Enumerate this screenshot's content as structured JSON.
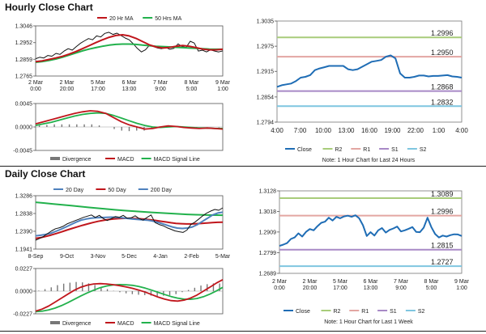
{
  "sections": {
    "hourly_title": "Hourly Close Chart",
    "daily_title": "Daily Close Chart"
  },
  "colors": {
    "price": "#111111",
    "ma_short": "#c0161c",
    "ma_long": "#22b14c",
    "ma_mid": "#4f81bd",
    "macd": "#c0161c",
    "signal": "#22b14c",
    "divergence": "#777777",
    "close": "#1f6db5",
    "r2": "#a8cc7a",
    "r1": "#e3a6a2",
    "s1": "#a889c6",
    "s2": "#7fc6e0",
    "frame": "#4a7ebb"
  },
  "chart_data": [
    {
      "id": "hourly_price",
      "type": "line",
      "legend": [
        "20 Hr MA",
        "50 Hrs MA"
      ],
      "x_labels": [
        "2 Mar\n0:00",
        "2 Mar\n20:00",
        "5 Mar\n17:00",
        "6 Mar\n13:00",
        "7 Mar\n9:00",
        "8 Mar\n5:00",
        "9 Mar\n1:00"
      ],
      "y_ticks": [
        1.2765,
        1.2859,
        1.2952,
        1.3046
      ],
      "ylim": [
        1.2765,
        1.3046
      ],
      "series": [
        {
          "name": "Close",
          "values": [
            1.2862,
            1.287,
            1.2866,
            1.288,
            1.2876,
            1.2892,
            1.2886,
            1.2905,
            1.2918,
            1.291,
            1.293,
            1.2948,
            1.2962,
            1.2975,
            1.2968,
            1.299,
            1.2984,
            1.3004,
            1.301,
            1.2998,
            1.3005,
            1.2992,
            1.2978,
            1.2968,
            1.2946,
            1.292,
            1.29,
            1.2912,
            1.2938,
            1.293,
            1.2922,
            1.2918,
            1.2925,
            1.2915,
            1.292,
            1.2945,
            1.293,
            1.2925,
            1.296,
            1.295,
            1.2905,
            1.291,
            1.29,
            1.2912,
            1.2905,
            1.29,
            1.2906
          ]
        },
        {
          "name": "20 Hr MA",
          "values": [
            1.2845,
            1.285,
            1.2858,
            1.2866,
            1.2875,
            1.2888,
            1.2902,
            1.2918,
            1.2935,
            1.2952,
            1.2968,
            1.2982,
            1.2992,
            1.2996,
            1.299,
            1.2976,
            1.2958,
            1.294,
            1.2928,
            1.2922,
            1.2925,
            1.2932,
            1.2936,
            1.2932,
            1.2924,
            1.2916,
            1.2912,
            1.2912,
            1.2915
          ]
        },
        {
          "name": "50 Hrs MA",
          "values": [
            1.2842,
            1.2846,
            1.2852,
            1.286,
            1.287,
            1.2882,
            1.2894,
            1.2906,
            1.2916,
            1.2924,
            1.2932,
            1.2938,
            1.2942,
            1.2944,
            1.2944,
            1.2942,
            1.2938,
            1.2935,
            1.2932,
            1.293,
            1.2928,
            1.2926,
            1.2924,
            1.2922,
            1.292,
            1.2918,
            1.2916,
            1.2915,
            1.2915
          ]
        }
      ]
    },
    {
      "id": "hourly_macd",
      "type": "line",
      "legend": [
        "Divergence",
        "MACD",
        "MACD Signal Line"
      ],
      "y_ticks": [
        0.0045,
        0.0,
        -0.0045
      ],
      "ylim": [
        -0.0045,
        0.0045
      ],
      "series": [
        {
          "name": "MACD",
          "values": [
            0.0006,
            0.001,
            0.0014,
            0.0018,
            0.0022,
            0.0026,
            0.0029,
            0.0031,
            0.003,
            0.0026,
            0.0018,
            0.001,
            0.0004,
            0.0,
            -0.0004,
            -0.0003,
            0.0,
            0.0002,
            0.0001,
            -0.0001,
            -0.0002,
            -0.0003,
            -0.0002,
            -0.0003,
            -0.0004
          ]
        },
        {
          "name": "MACD Signal Line",
          "values": [
            0.0003,
            0.0006,
            0.0009,
            0.0013,
            0.0017,
            0.0021,
            0.0024,
            0.0026,
            0.0027,
            0.0026,
            0.0022,
            0.0017,
            0.0012,
            0.0007,
            0.0003,
            0.0,
            -0.0001,
            0.0,
            0.0001,
            0.0,
            -0.0001,
            -0.0002,
            -0.0002,
            -0.0003,
            -0.0003
          ]
        },
        {
          "name": "Divergence",
          "values": [
            0.0003,
            0.0004,
            0.0005,
            0.0005,
            0.0005,
            0.0005,
            0.0005,
            0.0005,
            0.0003,
            0.0,
            -0.0004,
            -0.0007,
            -0.0008,
            -0.0007,
            -0.0007,
            -0.0003,
            0.0001,
            0.0002,
            0.0,
            -0.0001,
            -0.0001,
            -0.0001,
            0.0,
            0.0,
            -0.0001
          ]
        }
      ]
    },
    {
      "id": "hourly_24h",
      "type": "line",
      "x_labels": [
        "4:00",
        "7:00",
        "10:00",
        "13:00",
        "16:00",
        "19:00",
        "22:00",
        "1:00",
        "4:00"
      ],
      "y_ticks": [
        1.2794,
        1.2854,
        1.2915,
        1.2975,
        1.3035
      ],
      "ylim": [
        1.2794,
        1.3035
      ],
      "levels": [
        {
          "name": "R2",
          "value": 1.2996,
          "label": "1.2996"
        },
        {
          "name": "R1",
          "value": 1.295,
          "label": "1.2950"
        },
        {
          "name": "S1",
          "value": 1.2868,
          "label": "1.2868"
        },
        {
          "name": "S2",
          "value": 1.2832,
          "label": "1.2832"
        }
      ],
      "close": [
        1.2878,
        1.2882,
        1.2884,
        1.2886,
        1.2892,
        1.29,
        1.2902,
        1.2906,
        1.2918,
        1.2922,
        1.2925,
        1.2928,
        1.2928,
        1.2928,
        1.2928,
        1.292,
        1.2918,
        1.292,
        1.2926,
        1.2932,
        1.2938,
        1.294,
        1.2942,
        1.295,
        1.2953,
        1.2946,
        1.291,
        1.29,
        1.29,
        1.2902,
        1.2905,
        1.2905,
        1.2903,
        1.2904,
        1.2904,
        1.2905,
        1.2906,
        1.2903,
        1.2902,
        1.29
      ],
      "legend": [
        "Close",
        "R2",
        "R1",
        "S1",
        "S2"
      ],
      "note": "Note: 1 Hour Chart for Last 24 Hours"
    },
    {
      "id": "daily_price",
      "type": "line",
      "legend": [
        "20 Day",
        "50 Day",
        "200 Day"
      ],
      "x_labels": [
        "8-Sep",
        "9-Oct",
        "3-Nov",
        "5-Dec",
        "4-Jan",
        "2-Feb",
        "5-Mar"
      ],
      "y_ticks": [
        1.1941,
        1.239,
        1.2838,
        1.3286
      ],
      "ylim": [
        1.1941,
        1.3286
      ],
      "series": [
        {
          "name": "Close",
          "values": [
            1.2165,
            1.221,
            1.226,
            1.233,
            1.24,
            1.2455,
            1.248,
            1.252,
            1.258,
            1.262,
            1.266,
            1.27,
            1.274,
            1.277,
            1.28,
            1.274,
            1.279,
            1.271,
            1.266,
            1.271,
            1.276,
            1.274,
            1.279,
            1.272,
            1.273,
            1.278,
            1.271,
            1.267,
            1.274,
            1.28,
            1.261,
            1.256,
            1.253,
            1.248,
            1.244,
            1.24,
            1.238,
            1.236,
            1.242,
            1.256,
            1.262,
            1.27,
            1.278,
            1.285,
            1.29,
            1.294,
            1.292,
            1.298
          ]
        },
        {
          "name": "20 Day",
          "values": [
            1.2275,
            1.229,
            1.231,
            1.234,
            1.239,
            1.244,
            1.25,
            1.256,
            1.262,
            1.267,
            1.27,
            1.272,
            1.273,
            1.2735,
            1.274,
            1.2745,
            1.274,
            1.273,
            1.2715,
            1.27,
            1.269,
            1.268,
            1.267,
            1.265,
            1.262,
            1.258,
            1.254,
            1.25,
            1.247,
            1.246,
            1.247,
            1.25,
            1.256,
            1.264,
            1.272,
            1.28,
            1.285,
            1.287
          ]
        },
        {
          "name": "50 Day",
          "values": [
            1.221,
            1.223,
            1.226,
            1.2295,
            1.2335,
            1.2375,
            1.242,
            1.246,
            1.25,
            1.254,
            1.2575,
            1.261,
            1.264,
            1.2665,
            1.2685,
            1.27,
            1.271,
            1.2715,
            1.2715,
            1.2712,
            1.2705,
            1.2695,
            1.268,
            1.2665,
            1.2645,
            1.2625,
            1.2605,
            1.259,
            1.258,
            1.2575,
            1.2575,
            1.258,
            1.259,
            1.26,
            1.261,
            1.2615,
            1.262
          ]
        },
        {
          "name": "200 Day",
          "values": [
            1.312,
            1.31,
            1.3078,
            1.3058,
            1.3036,
            1.3012,
            1.299,
            1.297,
            1.295,
            1.293,
            1.2912,
            1.2896,
            1.288,
            1.2866,
            1.2852,
            1.284,
            1.2828,
            1.2816,
            1.2808,
            1.28,
            1.2796,
            1.2795
          ]
        }
      ]
    },
    {
      "id": "daily_macd",
      "type": "line",
      "legend": [
        "Divergence",
        "MACD",
        "MACD Signal Line"
      ],
      "y_ticks": [
        0.0227,
        0.0,
        -0.0227
      ],
      "ylim": [
        -0.0227,
        0.0227
      ],
      "series": [
        {
          "name": "MACD",
          "values": [
            -0.02,
            -0.018,
            -0.015,
            -0.011,
            -0.007,
            -0.003,
            0.001,
            0.004,
            0.006,
            0.0072,
            0.0075,
            0.0072,
            0.0065,
            0.0055,
            0.0042,
            0.0028,
            0.001,
            -0.001,
            -0.0035,
            -0.006,
            -0.008,
            -0.0095,
            -0.01,
            -0.009,
            -0.007,
            -0.004,
            0.0,
            0.004,
            0.008,
            0.0115
          ]
        },
        {
          "name": "MACD Signal Line",
          "values": [
            -0.0205,
            -0.02,
            -0.0188,
            -0.017,
            -0.0145,
            -0.0115,
            -0.0082,
            -0.0048,
            -0.0018,
            0.001,
            0.0035,
            0.0052,
            0.0062,
            0.0066,
            0.0064,
            0.0058,
            0.0046,
            0.003,
            0.001,
            -0.0012,
            -0.0034,
            -0.0054,
            -0.007,
            -0.008,
            -0.0082,
            -0.0074,
            -0.0056,
            -0.003,
            0.0002,
            0.0038
          ]
        },
        {
          "name": "Divergence",
          "values": [
            0.0005,
            0.002,
            0.0038,
            0.006,
            0.0075,
            0.0085,
            0.0092,
            0.0088,
            0.0078,
            0.0062,
            0.004,
            0.002,
            0.0003,
            -0.0011,
            -0.0022,
            -0.003,
            -0.0036,
            -0.004,
            -0.0045,
            -0.0048,
            -0.0046,
            -0.0041,
            -0.003,
            -0.001,
            0.0012,
            0.0034,
            0.0056,
            0.007,
            0.0078,
            0.0077
          ]
        }
      ]
    },
    {
      "id": "daily_week",
      "type": "line",
      "x_labels": [
        "2 Mar\n0:00",
        "2 Mar\n20:00",
        "5 Mar\n17:00",
        "6 Mar\n13:00",
        "7 Mar\n9:00",
        "8 Mar\n5:00",
        "9 Mar\n1:00"
      ],
      "y_ticks": [
        1.2689,
        1.2799,
        1.2909,
        1.3018,
        1.3128
      ],
      "ylim": [
        1.2689,
        1.3128
      ],
      "levels": [
        {
          "name": "R2",
          "value": 1.3089,
          "label": "1.3089"
        },
        {
          "name": "R1",
          "value": 1.2996,
          "label": "1.2996"
        },
        {
          "name": "S1",
          "value": 1.2815,
          "label": "1.2815"
        },
        {
          "name": "S2",
          "value": 1.2727,
          "label": "1.2727"
        }
      ],
      "close": [
        1.2835,
        1.2842,
        1.285,
        1.2872,
        1.288,
        1.2902,
        1.2885,
        1.291,
        1.2925,
        1.2918,
        1.294,
        1.2958,
        1.2964,
        1.2985,
        1.297,
        1.299,
        1.2982,
        1.2992,
        1.2996,
        1.299,
        1.2998,
        1.2982,
        1.2945,
        1.2888,
        1.2908,
        1.289,
        1.2918,
        1.293,
        1.2906,
        1.292,
        1.2928,
        1.2938,
        1.2912,
        1.2918,
        1.2926,
        1.2935,
        1.291,
        1.2908,
        1.2932,
        1.2985,
        1.2935,
        1.2898,
        1.288,
        1.289,
        1.2885,
        1.2892,
        1.2897,
        1.2896,
        1.2888
      ],
      "legend": [
        "Close",
        "R2",
        "R1",
        "S1",
        "S2"
      ],
      "note": "Note: 1 Hour Chart for Last 1 Week"
    }
  ]
}
